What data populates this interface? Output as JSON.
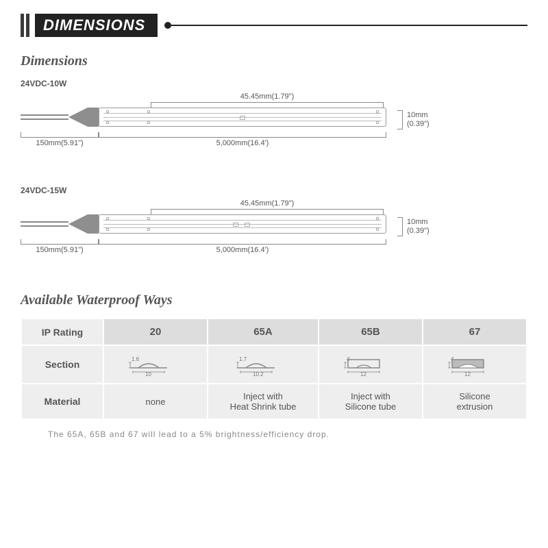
{
  "banner": {
    "label": "DIMENSIONS"
  },
  "sections": {
    "dims_title": "Dimensions",
    "wp_title": "Available Waterproof Ways"
  },
  "products": [
    {
      "model": "24VDC-10W",
      "top": "45.45mm(1.79\")",
      "right_l1": "10mm",
      "right_l2": "(0.39\")",
      "bottom_left": "150mm(5.91\")",
      "bottom_right": "5,000mm(16.4')"
    },
    {
      "model": "24VDC-15W",
      "top": "45.45mm(1.79\")",
      "right_l1": "10mm",
      "right_l2": "(0.39\")",
      "bottom_left": "150mm(5.91\")",
      "bottom_right": "5,000mm(16.4')"
    }
  ],
  "table": {
    "header": [
      "IP Rating",
      "20",
      "65A",
      "65B",
      "67"
    ],
    "row_section": "Section",
    "row_material": "Material",
    "sections": [
      {
        "h": "1.6",
        "w": "10",
        "type": "dome_open"
      },
      {
        "h": "1.7",
        "w": "10.2",
        "type": "dome_open"
      },
      {
        "h": "4",
        "w": "12",
        "type": "dome_box"
      },
      {
        "h": "4",
        "w": "12",
        "type": "dome_filled"
      }
    ],
    "materials": [
      "none",
      "Inject with\nHeat Shrink tube",
      "Inject with\nSilicone tube",
      "Silicone\nextrusion"
    ]
  },
  "footnote": "The 65A, 65B and 67 will lead to a 5% brightness/efficiency drop."
}
